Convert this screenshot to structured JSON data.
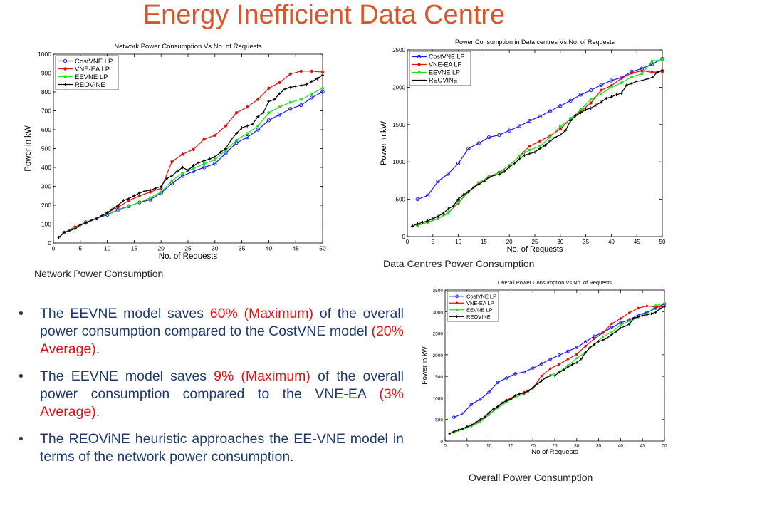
{
  "slide": {
    "title": "Energy Inefficient Data Centre"
  },
  "chart_data": [
    {
      "id": "network",
      "type": "line",
      "title": "Network Power Consumption Vs No. of Requests",
      "xlabel": "No. of Requests",
      "ylabel": "Power in kW",
      "caption": "Network Power Consumption",
      "xlim": [
        0,
        50
      ],
      "ylim": [
        0,
        1000
      ],
      "xticks": [
        0,
        5,
        10,
        15,
        20,
        25,
        30,
        35,
        40,
        45,
        50
      ],
      "yticks": [
        0,
        100,
        200,
        300,
        400,
        500,
        600,
        700,
        800,
        900,
        1000
      ],
      "legend": "top-left",
      "grid": false,
      "series": [
        {
          "name": "CostVNE LP",
          "color": "#1a1aff",
          "marker": "circle",
          "x": [
            2,
            4,
            6,
            8,
            10,
            12,
            14,
            16,
            18,
            20,
            22,
            24,
            26,
            28,
            30,
            32,
            34,
            36,
            38,
            40,
            42,
            44,
            46,
            48,
            50
          ],
          "y": [
            55,
            80,
            110,
            130,
            150,
            175,
            195,
            215,
            230,
            265,
            315,
            355,
            380,
            400,
            420,
            475,
            530,
            560,
            600,
            650,
            680,
            710,
            730,
            770,
            800
          ]
        },
        {
          "name": "VNE-EA LP",
          "color": "#e01010",
          "marker": "star",
          "x": [
            2,
            4,
            6,
            8,
            10,
            12,
            14,
            16,
            18,
            20,
            22,
            24,
            26,
            28,
            30,
            32,
            34,
            36,
            38,
            40,
            42,
            44,
            46,
            48,
            50
          ],
          "y": [
            55,
            85,
            110,
            130,
            160,
            190,
            225,
            250,
            270,
            290,
            430,
            470,
            495,
            550,
            570,
            620,
            690,
            720,
            760,
            820,
            850,
            895,
            910,
            910,
            905
          ]
        },
        {
          "name": "EEVNE LP",
          "color": "#22dd22",
          "marker": "dot",
          "x": [
            2,
            4,
            6,
            8,
            10,
            12,
            14,
            16,
            18,
            20,
            22,
            24,
            26,
            28,
            30,
            32,
            34,
            36,
            38,
            40,
            42,
            44,
            46,
            48,
            50
          ],
          "y": [
            55,
            80,
            110,
            130,
            155,
            170,
            195,
            215,
            240,
            270,
            330,
            370,
            395,
            420,
            440,
            490,
            545,
            580,
            620,
            690,
            720,
            745,
            760,
            790,
            820
          ]
        },
        {
          "name": "REOVINE",
          "color": "#000000",
          "marker": "plus",
          "x": [
            1,
            2,
            3,
            4,
            5,
            6,
            7,
            8,
            9,
            10,
            11,
            12,
            13,
            14,
            15,
            16,
            17,
            18,
            19,
            20,
            21,
            22,
            23,
            24,
            25,
            26,
            27,
            28,
            29,
            30,
            31,
            32,
            33,
            34,
            35,
            36,
            37,
            38,
            39,
            40,
            41,
            42,
            43,
            44,
            45,
            46,
            47,
            48,
            49,
            50
          ],
          "y": [
            30,
            55,
            65,
            75,
            95,
            105,
            120,
            130,
            145,
            160,
            180,
            200,
            225,
            235,
            250,
            265,
            275,
            280,
            290,
            300,
            340,
            355,
            380,
            400,
            385,
            410,
            425,
            435,
            445,
            455,
            480,
            500,
            545,
            580,
            610,
            620,
            630,
            670,
            690,
            750,
            760,
            790,
            815,
            825,
            830,
            835,
            840,
            855,
            870,
            890
          ]
        }
      ]
    },
    {
      "id": "datacentre",
      "type": "line",
      "title": "Power Consumption in Data centres Vs No. of Requests",
      "xlabel": "No. of Requests",
      "ylabel": "Power in kW",
      "caption": "Data Centres Power Consumption",
      "xlim": [
        0,
        50
      ],
      "ylim": [
        0,
        2500
      ],
      "xticks": [
        0,
        5,
        10,
        15,
        20,
        25,
        30,
        35,
        40,
        45,
        50
      ],
      "yticks": [
        0,
        500,
        1000,
        1500,
        2000,
        2500
      ],
      "legend": "top-left",
      "grid": false,
      "series": [
        {
          "name": "CostVNE LP",
          "color": "#1a1aff",
          "marker": "circle",
          "x": [
            2,
            4,
            6,
            8,
            10,
            12,
            14,
            16,
            18,
            20,
            22,
            24,
            26,
            28,
            30,
            32,
            34,
            36,
            38,
            40,
            42,
            44,
            46,
            48,
            50
          ],
          "y": [
            500,
            550,
            740,
            840,
            980,
            1180,
            1250,
            1330,
            1360,
            1420,
            1480,
            1550,
            1610,
            1680,
            1750,
            1820,
            1900,
            1960,
            2030,
            2090,
            2130,
            2210,
            2250,
            2310,
            2380
          ]
        },
        {
          "name": "VNE-EA LP",
          "color": "#e01010",
          "marker": "star",
          "x": [
            2,
            4,
            6,
            8,
            10,
            12,
            14,
            16,
            18,
            20,
            22,
            24,
            26,
            28,
            30,
            32,
            34,
            36,
            38,
            40,
            42,
            44,
            46,
            48,
            50
          ],
          "y": [
            150,
            190,
            240,
            320,
            450,
            600,
            720,
            800,
            860,
            950,
            1080,
            1210,
            1280,
            1350,
            1440,
            1580,
            1680,
            1790,
            1960,
            2020,
            2120,
            2190,
            2220,
            2200,
            2210
          ]
        },
        {
          "name": "EEVNE LP",
          "color": "#22dd22",
          "marker": "dot",
          "x": [
            2,
            4,
            6,
            8,
            10,
            12,
            14,
            16,
            18,
            20,
            22,
            24,
            26,
            28,
            30,
            32,
            34,
            36,
            38,
            40,
            42,
            44,
            46,
            48,
            50
          ],
          "y": [
            150,
            190,
            240,
            310,
            460,
            600,
            710,
            810,
            850,
            950,
            1080,
            1160,
            1210,
            1330,
            1480,
            1570,
            1700,
            1840,
            1910,
            2000,
            2060,
            2140,
            2180,
            2350,
            2370
          ]
        },
        {
          "name": "REOVINE",
          "color": "#000000",
          "marker": "plus",
          "x": [
            1,
            2,
            3,
            4,
            5,
            6,
            7,
            8,
            9,
            10,
            11,
            12,
            13,
            14,
            15,
            16,
            17,
            18,
            19,
            20,
            21,
            22,
            23,
            24,
            25,
            26,
            27,
            28,
            29,
            30,
            31,
            32,
            33,
            34,
            35,
            36,
            37,
            38,
            39,
            40,
            41,
            42,
            43,
            44,
            45,
            46,
            47,
            48,
            49,
            50
          ],
          "y": [
            140,
            170,
            190,
            210,
            240,
            270,
            310,
            370,
            410,
            500,
            560,
            600,
            660,
            700,
            740,
            790,
            820,
            830,
            870,
            930,
            980,
            1040,
            1090,
            1110,
            1130,
            1180,
            1220,
            1280,
            1330,
            1360,
            1420,
            1550,
            1620,
            1660,
            1700,
            1720,
            1760,
            1800,
            1850,
            1870,
            1900,
            1920,
            2030,
            2050,
            2080,
            2090,
            2110,
            2130,
            2200,
            2230
          ]
        }
      ]
    },
    {
      "id": "overall",
      "type": "line",
      "title": "Overall Power Consumption Vs No. of Requests",
      "xlabel": "No of Requests",
      "ylabel": "Power in kW",
      "caption": "Overall Power Consumption",
      "xlim": [
        0,
        50
      ],
      "ylim": [
        0,
        3500
      ],
      "xticks": [
        0,
        5,
        10,
        15,
        20,
        25,
        30,
        35,
        40,
        45,
        50
      ],
      "yticks": [
        0,
        500,
        1000,
        1500,
        2000,
        2500,
        3000,
        3500
      ],
      "legend": "top-left",
      "grid": false,
      "series": [
        {
          "name": "CostVNE LP",
          "color": "#1a1aff",
          "marker": "circle",
          "x": [
            2,
            4,
            6,
            8,
            10,
            12,
            14,
            16,
            18,
            20,
            22,
            24,
            26,
            28,
            30,
            32,
            34,
            36,
            38,
            40,
            42,
            44,
            46,
            48,
            50
          ],
          "y": [
            550,
            630,
            850,
            970,
            1130,
            1360,
            1460,
            1560,
            1600,
            1690,
            1790,
            1900,
            1990,
            2080,
            2170,
            2300,
            2430,
            2520,
            2630,
            2740,
            2810,
            2920,
            2980,
            3080,
            3180
          ]
        },
        {
          "name": "VNE-EA LP",
          "color": "#e01010",
          "marker": "star",
          "x": [
            2,
            4,
            6,
            8,
            10,
            12,
            14,
            16,
            18,
            20,
            22,
            24,
            26,
            28,
            30,
            32,
            34,
            36,
            38,
            40,
            42,
            44,
            46,
            48,
            50
          ],
          "y": [
            200,
            280,
            350,
            460,
            610,
            790,
            950,
            1050,
            1130,
            1230,
            1510,
            1680,
            1780,
            1900,
            2010,
            2200,
            2370,
            2510,
            2720,
            2840,
            2970,
            3080,
            3130,
            3110,
            3120
          ]
        },
        {
          "name": "EEVNE LP",
          "color": "#22dd22",
          "marker": "dot",
          "x": [
            2,
            4,
            6,
            8,
            10,
            12,
            14,
            16,
            18,
            20,
            22,
            24,
            26,
            28,
            30,
            32,
            34,
            36,
            38,
            40,
            42,
            44,
            46,
            48,
            50
          ],
          "y": [
            200,
            270,
            350,
            440,
            610,
            770,
            900,
            1020,
            1090,
            1220,
            1410,
            1530,
            1600,
            1750,
            1920,
            2060,
            2240,
            2420,
            2530,
            2690,
            2780,
            2880,
            2940,
            3140,
            3190
          ]
        },
        {
          "name": "REOVINE",
          "color": "#000000",
          "marker": "plus",
          "x": [
            1,
            2,
            3,
            4,
            5,
            6,
            7,
            8,
            9,
            10,
            11,
            12,
            13,
            14,
            15,
            16,
            17,
            18,
            19,
            20,
            21,
            22,
            23,
            24,
            25,
            26,
            27,
            28,
            29,
            30,
            31,
            32,
            33,
            34,
            35,
            36,
            37,
            38,
            39,
            40,
            41,
            42,
            43,
            44,
            45,
            46,
            47,
            48,
            49,
            50
          ],
          "y": [
            170,
            225,
            255,
            285,
            335,
            375,
            430,
            500,
            555,
            660,
            740,
            800,
            885,
            935,
            970,
            1055,
            1095,
            1110,
            1160,
            1230,
            1320,
            1395,
            1470,
            1510,
            1515,
            1590,
            1645,
            1715,
            1775,
            1815,
            1900,
            2050,
            2165,
            2240,
            2310,
            2340,
            2390,
            2470,
            2540,
            2620,
            2660,
            2710,
            2845,
            2875,
            2910,
            2925,
            2950,
            2985,
            3070,
            3120
          ]
        }
      ]
    }
  ],
  "bullets": [
    {
      "parts": [
        {
          "text": "The EEVNE model saves ",
          "hl": false
        },
        {
          "text": "60% (Maximum)",
          "hl": true
        },
        {
          "text": "  of the overall power consumption compared to the CostVNE model ",
          "hl": false
        },
        {
          "text": "(20% Average)",
          "hl": true
        },
        {
          "text": ".",
          "hl": false
        }
      ]
    },
    {
      "parts": [
        {
          "text": "The EEVNE model saves ",
          "hl": false
        },
        {
          "text": "9% (Maximum)",
          "hl": true
        },
        {
          "text": " of the overall power consumption compared to the VNE-EA ",
          "hl": false
        },
        {
          "text": "(3% Average)",
          "hl": true
        },
        {
          "text": ".",
          "hl": false
        }
      ]
    },
    {
      "parts": [
        {
          "text": "The REOViNE heuristic approaches the EE-VNE model in terms of the network power consumption.",
          "hl": false
        }
      ]
    }
  ],
  "colors": {
    "title": "#d9542b",
    "bullet_text": "#1f3b6e",
    "highlight": "#e01010"
  }
}
